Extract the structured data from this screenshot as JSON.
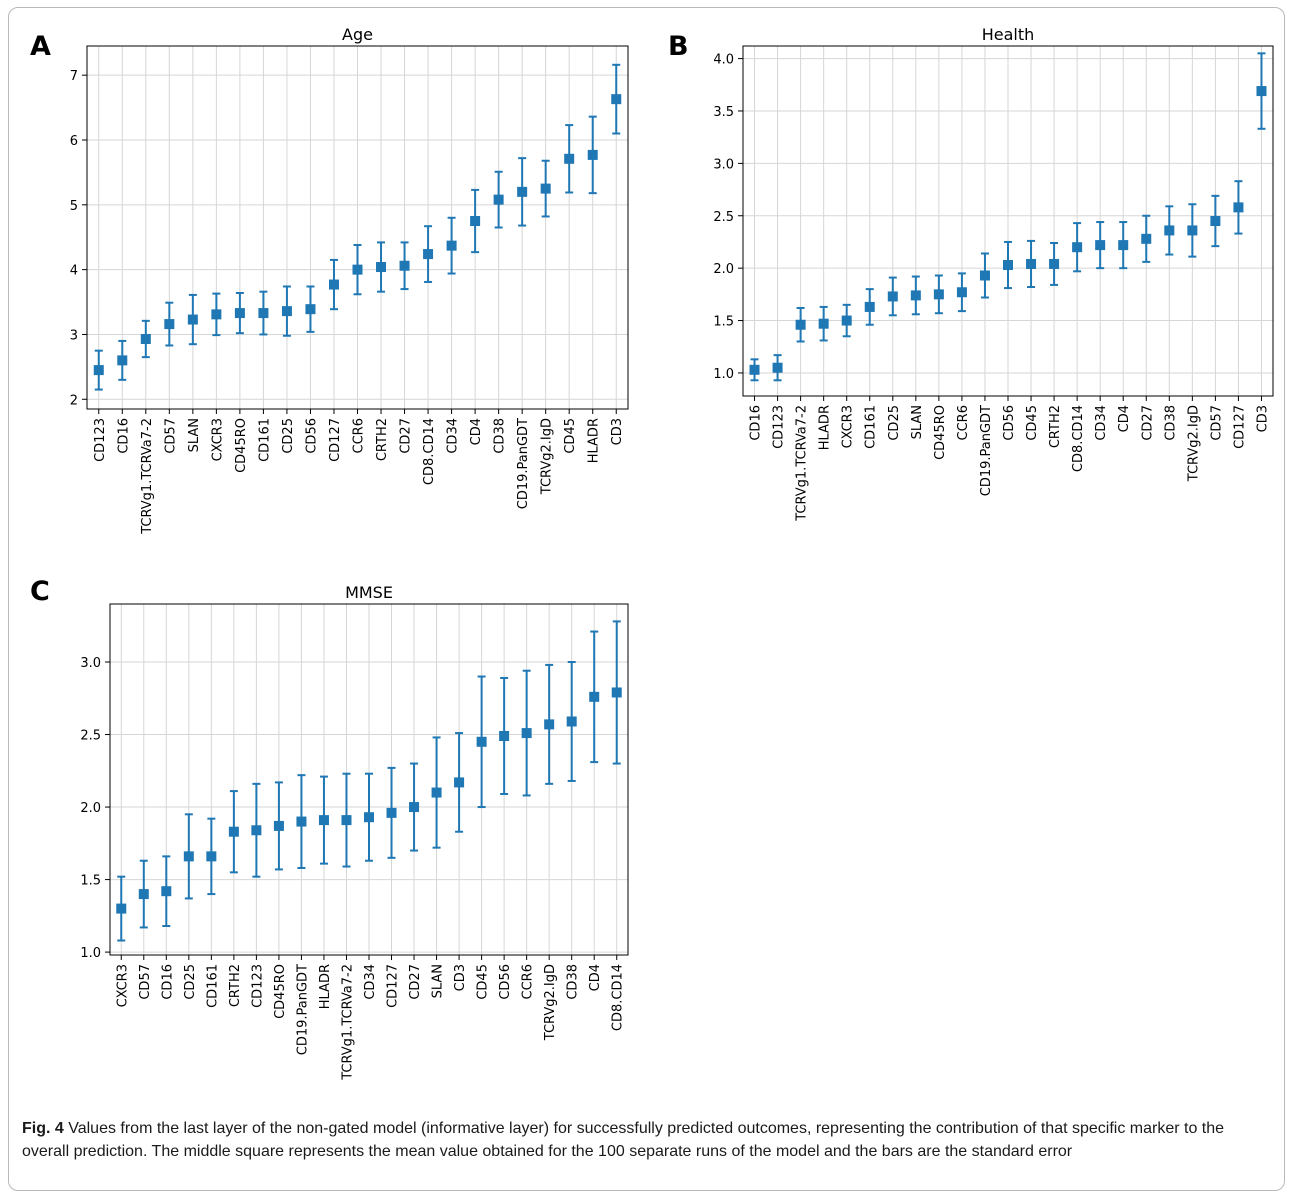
{
  "caption": {
    "label": "Fig. 4",
    "text": " Values from the last layer of the non-gated model (informative layer) for successfully predicted outcomes, representing the contribution of that specific marker to the overall prediction. The middle square represents the mean value obtained for the 100 separate runs of the model and the bars are the standard error"
  },
  "colors": {
    "marker": "#1f77b4",
    "grid": "#d6d6d6",
    "axis": "#000000",
    "frame": "#b9b9b9"
  },
  "chart_data": [
    {
      "type": "scatter",
      "panel_label": "A",
      "title": "Age",
      "ylim": [
        1.85,
        7.45
      ],
      "yticks": [
        2,
        3,
        4,
        5,
        6,
        7
      ],
      "ytick_labels": [
        "2",
        "3",
        "4",
        "5",
        "6",
        "7"
      ],
      "grid": true,
      "error_bars": true,
      "categories": [
        "CD123",
        "CD16",
        "TCRVg1.TCRVa7-2",
        "CD57",
        "SLAN",
        "CXCR3",
        "CD45RO",
        "CD161",
        "CD25",
        "CD56",
        "CD127",
        "CCR6",
        "CRTH2",
        "CD27",
        "CD8.CD14",
        "CD34",
        "CD4",
        "CD38",
        "CD19.PanGDT",
        "TCRVg2.IgD",
        "CD45",
        "HLADR",
        "CD3"
      ],
      "values": [
        2.45,
        2.6,
        2.93,
        3.16,
        3.23,
        3.31,
        3.33,
        3.33,
        3.36,
        3.39,
        3.77,
        4.0,
        4.04,
        4.06,
        4.24,
        4.37,
        4.75,
        5.08,
        5.2,
        5.25,
        5.71,
        5.77,
        6.63
      ],
      "errors": [
        0.3,
        0.3,
        0.28,
        0.33,
        0.38,
        0.32,
        0.31,
        0.33,
        0.38,
        0.35,
        0.38,
        0.38,
        0.38,
        0.36,
        0.43,
        0.43,
        0.48,
        0.43,
        0.52,
        0.43,
        0.52,
        0.59,
        0.53
      ]
    },
    {
      "type": "scatter",
      "panel_label": "B",
      "title": "Health",
      "ylim": [
        0.78,
        4.12
      ],
      "yticks": [
        1.0,
        1.5,
        2.0,
        2.5,
        3.0,
        3.5,
        4.0
      ],
      "ytick_labels": [
        "1.0",
        "1.5",
        "2.0",
        "2.5",
        "3.0",
        "3.5",
        "4.0"
      ],
      "grid": true,
      "error_bars": true,
      "categories": [
        "CD16",
        "CD123",
        "TCRVg1.TCRVa7-2",
        "HLADR",
        "CXCR3",
        "CD161",
        "CD25",
        "SLAN",
        "CD45RO",
        "CCR6",
        "CD19.PanGDT",
        "CD56",
        "CD45",
        "CRTH2",
        "CD8.CD14",
        "CD34",
        "CD4",
        "CD27",
        "CD38",
        "TCRVg2.IgD",
        "CD57",
        "CD127",
        "CD3"
      ],
      "values": [
        1.03,
        1.05,
        1.46,
        1.47,
        1.5,
        1.63,
        1.73,
        1.74,
        1.75,
        1.77,
        1.93,
        2.03,
        2.04,
        2.04,
        2.2,
        2.22,
        2.22,
        2.28,
        2.36,
        2.36,
        2.45,
        2.58,
        3.69
      ],
      "errors": [
        0.1,
        0.12,
        0.16,
        0.16,
        0.15,
        0.17,
        0.18,
        0.18,
        0.18,
        0.18,
        0.21,
        0.22,
        0.22,
        0.2,
        0.23,
        0.22,
        0.22,
        0.22,
        0.23,
        0.25,
        0.24,
        0.25,
        0.36
      ]
    },
    {
      "type": "scatter",
      "panel_label": "C",
      "title": "MMSE",
      "ylim": [
        0.98,
        3.4
      ],
      "yticks": [
        1.0,
        1.5,
        2.0,
        2.5,
        3.0
      ],
      "ytick_labels": [
        "1.0",
        "1.5",
        "2.0",
        "2.5",
        "3.0"
      ],
      "grid": true,
      "error_bars": true,
      "categories": [
        "CXCR3",
        "CD57",
        "CD16",
        "CD25",
        "CD161",
        "CRTH2",
        "CD123",
        "CD45RO",
        "CD19.PanGDT",
        "HLADR",
        "TCRVg1.TCRVa7-2",
        "CD34",
        "CD127",
        "CD27",
        "SLAN",
        "CD3",
        "CD45",
        "CD56",
        "CCR6",
        "TCRVg2.IgD",
        "CD38",
        "CD4",
        "CD8.CD14"
      ],
      "values": [
        1.3,
        1.4,
        1.42,
        1.66,
        1.66,
        1.83,
        1.84,
        1.87,
        1.9,
        1.91,
        1.91,
        1.93,
        1.96,
        2.0,
        2.1,
        2.17,
        2.45,
        2.49,
        2.51,
        2.57,
        2.59,
        2.76,
        2.79
      ],
      "errors": [
        0.22,
        0.23,
        0.24,
        0.29,
        0.26,
        0.28,
        0.32,
        0.3,
        0.32,
        0.3,
        0.32,
        0.3,
        0.31,
        0.3,
        0.38,
        0.34,
        0.45,
        0.4,
        0.43,
        0.41,
        0.41,
        0.45,
        0.49
      ]
    }
  ]
}
